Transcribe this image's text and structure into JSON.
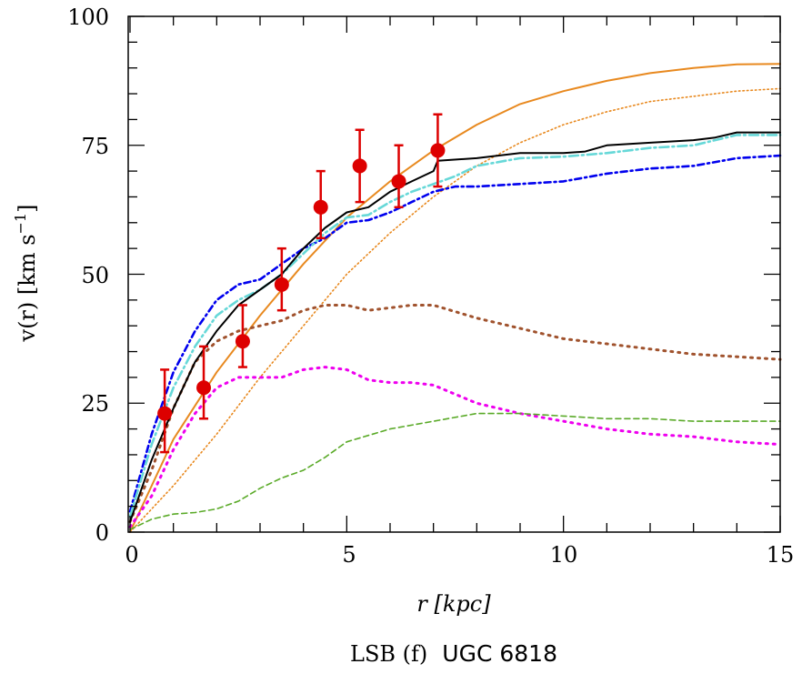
{
  "chart_data": {
    "type": "line",
    "xlabel": "r [kpc]",
    "ylabel_main": "v(r) [km s",
    "ylabel_sup": "−1",
    "ylabel_end": "]",
    "xlim": [
      0,
      15
    ],
    "ylim": [
      0,
      100
    ],
    "xticks": [
      "0",
      "5",
      "10",
      "15"
    ],
    "yticks": [
      "0",
      "25",
      "50",
      "75",
      "100"
    ],
    "caption_serif": "LSB (f)",
    "caption_sans": "UGC 6818",
    "grid": false,
    "observed": {
      "color": "#dd0000",
      "x": [
        0.8,
        1.7,
        2.6,
        3.5,
        4.4,
        5.3,
        6.2,
        7.1
      ],
      "y": [
        23,
        28,
        37,
        48,
        63,
        71,
        68,
        74
      ],
      "err_low": [
        15.5,
        22,
        32,
        43,
        57,
        64,
        63,
        67
      ],
      "err_high": [
        31.5,
        36,
        44,
        55,
        70,
        78,
        75,
        81
      ]
    },
    "series": [
      {
        "color": "#e8891f",
        "style": "solid",
        "x": [
          0,
          1,
          2,
          3,
          4,
          5,
          6,
          7,
          8,
          9,
          10,
          11,
          12,
          13,
          14,
          15
        ],
        "y": [
          0,
          18,
          31,
          42,
          52,
          61,
          68,
          74,
          79,
          83,
          85.5,
          87.5,
          89,
          90,
          90.7,
          90.8
        ]
      },
      {
        "color": "#e8891f",
        "style": "dotted-fine",
        "x": [
          0,
          1,
          2,
          3,
          4,
          5,
          6,
          7,
          8,
          9,
          10,
          11,
          12,
          13,
          14,
          15
        ],
        "y": [
          0,
          9,
          19,
          30,
          40,
          50,
          58,
          65,
          71,
          75.5,
          79,
          81.5,
          83.5,
          84.5,
          85.5,
          86
        ]
      },
      {
        "color": "#a0522d",
        "style": "dotted",
        "x": [
          0,
          0.5,
          1,
          1.5,
          2,
          2.5,
          3,
          3.5,
          4,
          4.5,
          5,
          5.5,
          6,
          6.5,
          7,
          8,
          9,
          10,
          11,
          12,
          13,
          14,
          15
        ],
        "y": [
          2,
          12,
          24,
          33,
          37,
          39,
          40,
          41,
          43,
          44,
          44,
          43,
          43.5,
          44,
          44,
          41.5,
          39.5,
          37.5,
          36.5,
          35.5,
          34.5,
          34,
          33.5
        ]
      },
      {
        "color": "#ee00ee",
        "style": "dotted",
        "x": [
          0,
          0.5,
          1,
          1.5,
          2,
          2.5,
          3,
          3.5,
          4,
          4.5,
          5,
          5.5,
          6,
          6.5,
          7,
          8,
          9,
          10,
          11,
          12,
          13,
          14,
          15
        ],
        "y": [
          1,
          7,
          16,
          23,
          28,
          30,
          30,
          30,
          31.5,
          32,
          31.5,
          29.5,
          29,
          29,
          28.5,
          25,
          23,
          21.5,
          20,
          19,
          18.5,
          17.5,
          17
        ]
      },
      {
        "color": "#5aaa28",
        "style": "dashed",
        "x": [
          0,
          0.5,
          1,
          1.5,
          2,
          2.5,
          3,
          3.5,
          4,
          4.5,
          5,
          6,
          7,
          8,
          9,
          10,
          11,
          12,
          13,
          14,
          15
        ],
        "y": [
          0.5,
          2.5,
          3.5,
          3.8,
          4.5,
          6,
          8.5,
          10.5,
          12,
          14.5,
          17.5,
          20,
          21.5,
          23,
          23,
          22.5,
          22,
          22,
          21.5,
          21.5,
          21.5
        ]
      },
      {
        "color": "#0000ee",
        "style": "dashdot",
        "x": [
          0,
          0.5,
          1,
          1.5,
          2,
          2.5,
          3,
          3.5,
          4,
          4.5,
          5,
          5.5,
          6,
          6.5,
          7,
          7.5,
          8,
          9,
          10,
          11,
          12,
          13,
          14,
          15
        ],
        "y": [
          4,
          19,
          31,
          39,
          45,
          48,
          49,
          52,
          55,
          57,
          60,
          60.5,
          62,
          64,
          66,
          67,
          67,
          67.5,
          68,
          69.5,
          70.5,
          71,
          72.5,
          73
        ]
      },
      {
        "color": "#66d8d8",
        "style": "dashdot-long",
        "x": [
          0,
          0.5,
          1,
          1.5,
          2,
          2.5,
          3,
          3.5,
          4,
          4.5,
          5,
          5.5,
          6,
          6.5,
          7,
          7.5,
          8,
          9,
          10,
          11,
          12,
          13,
          14,
          15
        ],
        "y": [
          3,
          17,
          28,
          36,
          42,
          45,
          47,
          50,
          54,
          58,
          61,
          61.5,
          64,
          66,
          67.5,
          69,
          71,
          72.5,
          72.8,
          73.5,
          74.5,
          75,
          77,
          77
        ]
      },
      {
        "color": "#000000",
        "style": "solid",
        "x": [
          0,
          0.5,
          1,
          1.5,
          2,
          2.5,
          3,
          3.5,
          4,
          4.5,
          5,
          5.5,
          6,
          6.5,
          7,
          7.1,
          8,
          9,
          10,
          10.5,
          11,
          12,
          13,
          13.5,
          14,
          15
        ],
        "y": [
          2,
          14,
          24,
          33,
          39,
          44,
          47,
          50,
          55,
          59,
          62,
          63,
          66,
          68,
          70,
          72,
          72.5,
          73.5,
          73.5,
          73.8,
          75,
          75.5,
          76,
          76.5,
          77.5,
          77.5
        ]
      }
    ]
  }
}
